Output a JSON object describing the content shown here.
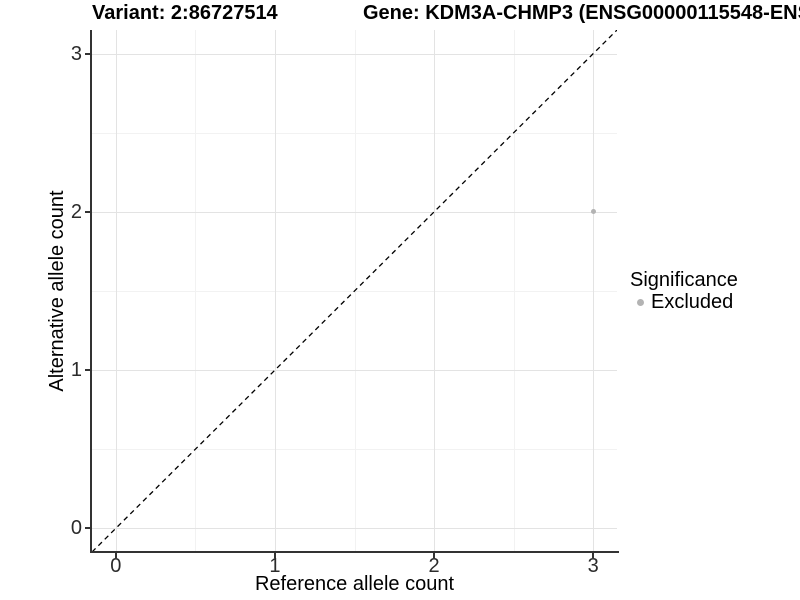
{
  "chart_data": {
    "type": "scatter",
    "title": "Variant: 2:86727514",
    "secondary_title": "Gene: KDM3A-CHMP3 (ENSG00000115548-ENS",
    "xlabel": "Reference allele count",
    "ylabel": "Alternative allele count",
    "xlim": [
      -0.15,
      3.15
    ],
    "ylim": [
      -0.15,
      3.15
    ],
    "x_ticks": [
      0,
      1,
      2,
      3
    ],
    "y_ticks": [
      0,
      1,
      2,
      3
    ],
    "x_minor_ticks": [
      0.5,
      1.5,
      2.5
    ],
    "y_minor_ticks": [
      0.5,
      1.5,
      2.5
    ],
    "grid": true,
    "series": [
      {
        "name": "Excluded",
        "color": "#b3b3b3",
        "points": [
          {
            "x": 3,
            "y": 2,
            "significance": "Excluded"
          }
        ]
      }
    ],
    "reference_line": {
      "type": "identity",
      "style": "dashed",
      "color": "#000000"
    },
    "legend": {
      "title": "Significance",
      "position": "right",
      "entries": [
        {
          "label": "Excluded",
          "color": "#b3b3b3"
        }
      ]
    }
  },
  "colors": {
    "background": "#ffffff",
    "grid_major": "#e3e3e3",
    "grid_minor": "#f2f2f2",
    "axis_line": "#333333",
    "tick_mark": "#333333",
    "tick_text": "#2b2b2b",
    "ref_line": "#000000",
    "point": "#b3b3b3"
  }
}
